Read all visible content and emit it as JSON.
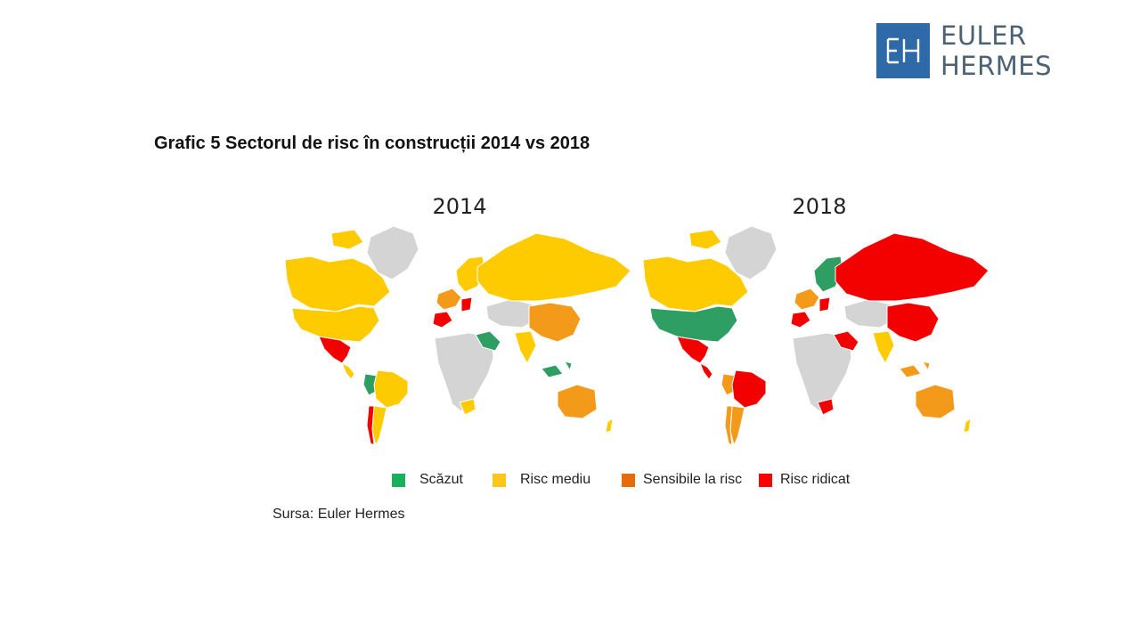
{
  "brand": {
    "name": "EULER HERMES",
    "logo_mark": "EH"
  },
  "title": "Grafic 5 Sectorul de risc în construcții 2014 vs 2018",
  "legend": [
    {
      "label": "Scăzut",
      "color": "#1aaf5d"
    },
    {
      "label": "Risc mediu",
      "color": "#ffc61a"
    },
    {
      "label": "Sensibile la risc",
      "color": "#e46c0a"
    },
    {
      "label": "Risc ridicat",
      "color": "#ff0000"
    }
  ],
  "colors": {
    "low": "#2e9e62",
    "medium": "#fdcb00",
    "sensitive": "#f39a1a",
    "high": "#f30000",
    "no_data": "#d4d4d4"
  },
  "maps": [
    {
      "year": "2014",
      "regions": {
        "greenland": "no_data",
        "canada": "medium",
        "usa": "medium",
        "mexico": "high",
        "central_america": "medium",
        "peru_ecuador": "low",
        "brazil": "medium",
        "argentina": "medium",
        "chile": "high",
        "russia": "medium",
        "china": "sensitive",
        "india": "medium",
        "saudi_arabia": "low",
        "middle_east": "no_data",
        "africa": "no_data",
        "south_africa": "medium",
        "australia": "sensitive",
        "new_zealand": "medium",
        "europe_north": "medium",
        "europe_west": "sensitive",
        "europe_south": "high",
        "indonesia": "low"
      }
    },
    {
      "year": "2018",
      "regions": {
        "greenland": "no_data",
        "canada": "medium",
        "usa": "low",
        "mexico": "high",
        "central_america": "high",
        "peru_ecuador": "sensitive",
        "brazil": "high",
        "argentina": "sensitive",
        "chile": "sensitive",
        "russia": "high",
        "china": "high",
        "india": "medium",
        "saudi_arabia": "high",
        "middle_east": "no_data",
        "africa": "no_data",
        "south_africa": "high",
        "australia": "sensitive",
        "new_zealand": "medium",
        "europe_north": "low",
        "europe_west": "sensitive",
        "europe_south": "high",
        "indonesia": "sensitive"
      }
    }
  ],
  "source": "Sursa: Euler Hermes"
}
